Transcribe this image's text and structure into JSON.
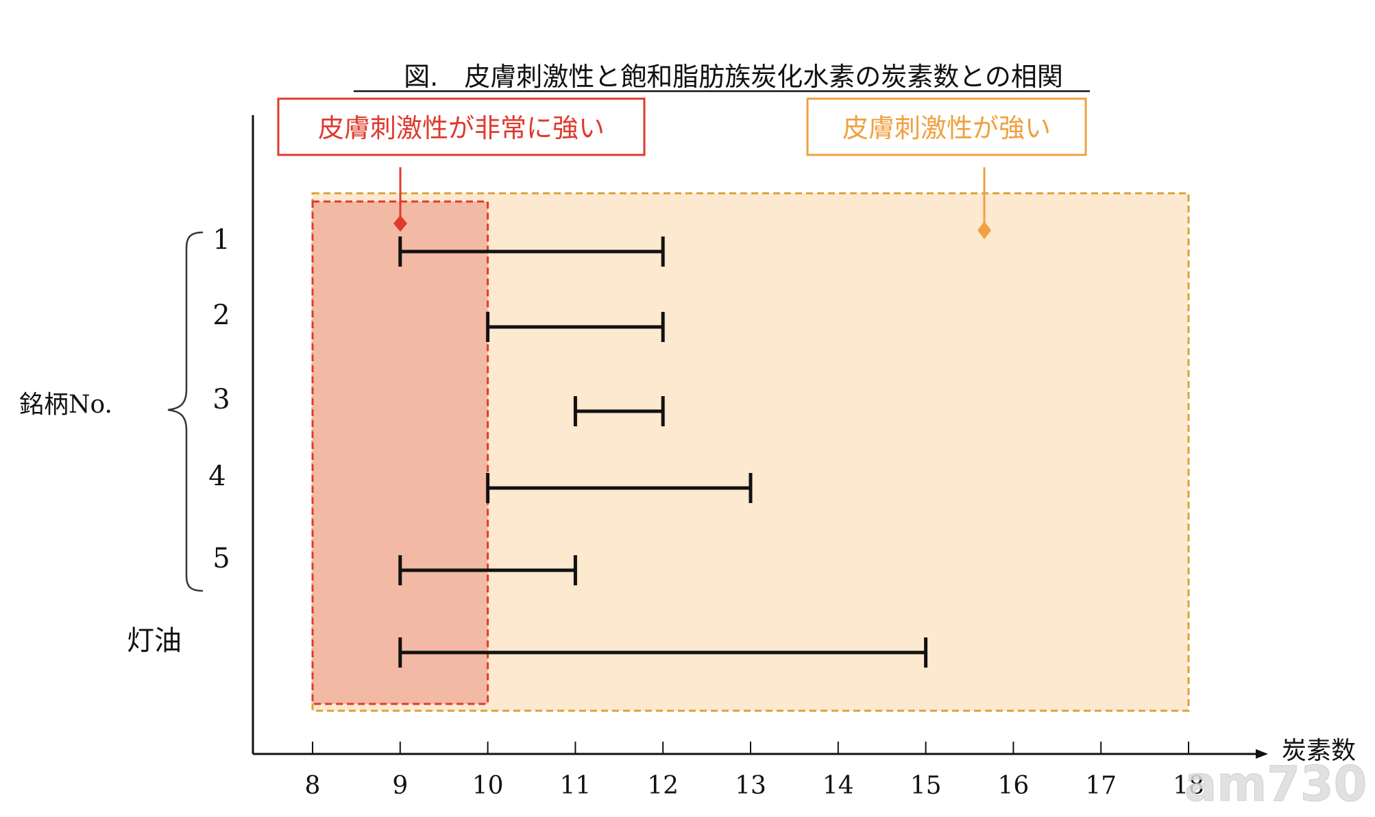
{
  "chart_data": {
    "type": "range-bar",
    "title": "図.　皮膚刺激性と飽和脂肪族炭化水素の炭素数との相関",
    "xlabel": "炭素数",
    "ylabel": "銘柄No.",
    "xlim": [
      8,
      18
    ],
    "x_ticks": [
      "8",
      "9",
      "10",
      "11",
      "12",
      "13",
      "14",
      "15",
      "16",
      "17",
      "18"
    ],
    "grid": false,
    "ranges": [
      {
        "label": "1",
        "min": 9,
        "max": 12
      },
      {
        "label": "2",
        "min": 10,
        "max": 12
      },
      {
        "label": "3",
        "min": 11,
        "max": 12
      },
      {
        "label": "4",
        "min": 10,
        "max": 13
      },
      {
        "label": "5",
        "min": 9,
        "max": 11
      },
      {
        "label": "灯油",
        "min": 9,
        "max": 15
      }
    ],
    "regions": [
      {
        "label": "皮膚刺激性が非常に強い",
        "from": 8,
        "to": 10,
        "color": "#e8483c",
        "fill": "#f2b9a4"
      },
      {
        "label": "皮膚刺激性が強い",
        "from": 8,
        "to": 18,
        "color": "#f0a040",
        "fill": "#fde9cf"
      }
    ]
  },
  "watermark": "am730"
}
